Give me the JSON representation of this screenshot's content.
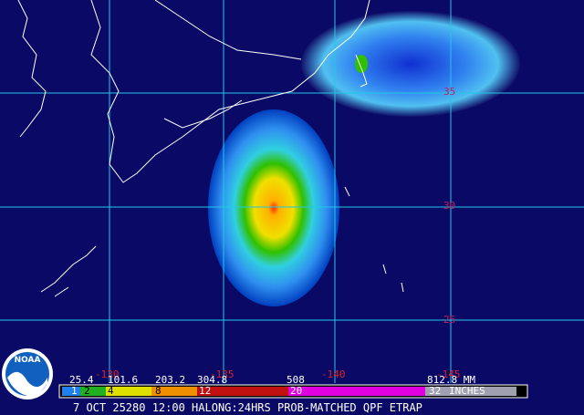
{
  "map": {
    "lat_labels": [
      "35",
      "30",
      "25"
    ],
    "lon_labels": [
      "-130",
      "-135",
      "-140",
      "-145"
    ]
  },
  "legend": {
    "mm": [
      "25.4",
      "101.6",
      "203.2",
      "304.8",
      "508",
      "812.8 MM"
    ],
    "inches": [
      "1",
      "2",
      "4",
      "8",
      "12",
      "20",
      "32",
      "INCHES"
    ]
  },
  "caption": "7 OCT 25280 12:00 HALONG:24HRS PROB-MATCHED QPF ETRAP",
  "logo": "NOAA"
}
